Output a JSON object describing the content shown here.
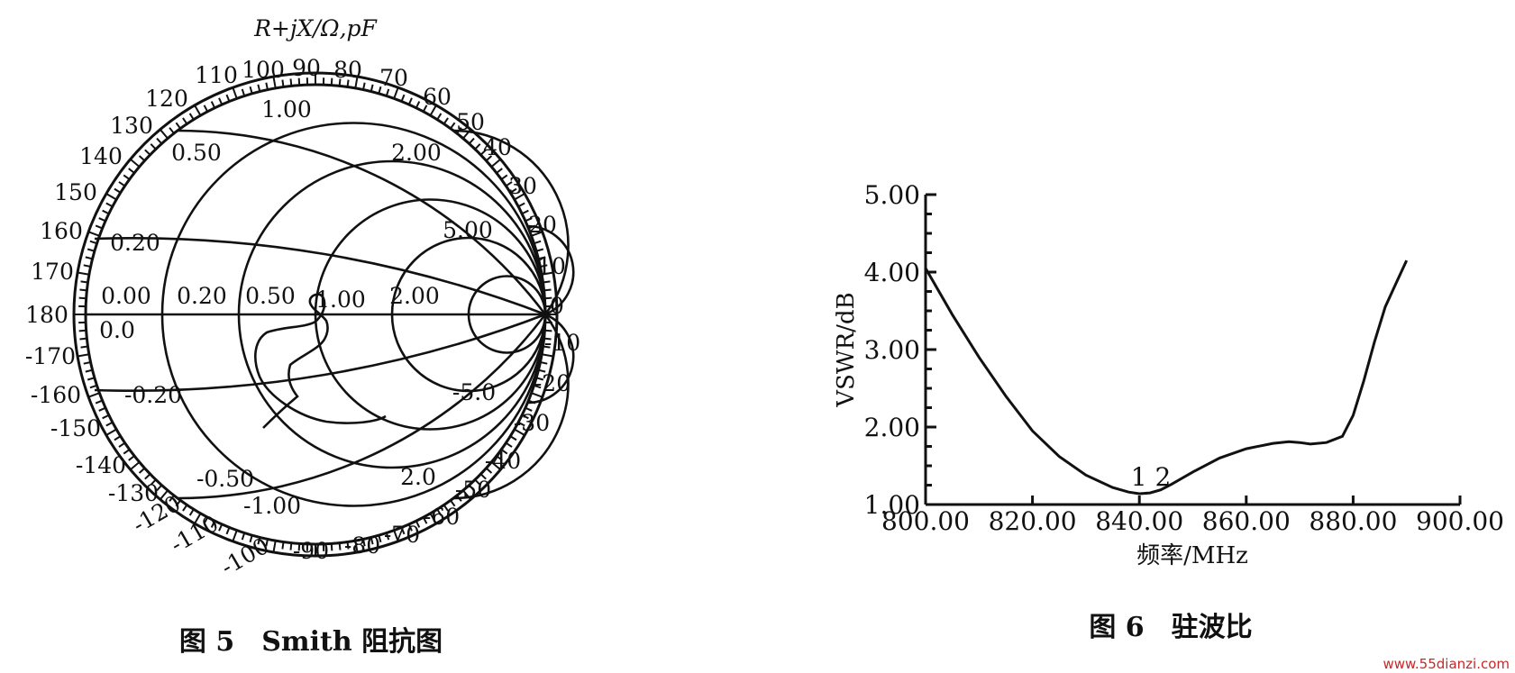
{
  "figure5": {
    "title": "R+jX/Ω,pF",
    "caption": "图 5　Smith 阻抗图",
    "outer_labels": [
      "110",
      "100",
      "90",
      "80",
      "70",
      "60",
      "50",
      "40",
      "30",
      "20",
      "10",
      "0",
      "-10",
      "-20",
      "-30",
      "-40",
      "-50",
      "-60",
      "-70",
      "-80",
      "-90",
      "-100",
      "-110",
      "-120",
      "-130",
      "-140",
      "-150",
      "-160",
      "-170",
      "180",
      "170",
      "160",
      "150",
      "140",
      "130",
      "120"
    ],
    "inner_labels": [
      "1.00",
      "0.50",
      "2.00",
      "5.00",
      "0.20",
      "0.00",
      "0.20",
      "0.50",
      "1.00",
      "2.00",
      "0.0",
      "-0.20",
      "-5.0",
      "-0.50",
      "-1.00",
      "2.0"
    ]
  },
  "figure6": {
    "caption": "图 6　驻波比",
    "marker_label": "1 2"
  },
  "chart_data": {
    "type": "line",
    "xlabel": "频率/MHz",
    "ylabel": "VSWR/dB",
    "xlim": [
      800,
      900
    ],
    "ylim": [
      1,
      5
    ],
    "x_ticks": [
      "800.00",
      "820.00",
      "840.00",
      "860.00",
      "880.00",
      "900.00"
    ],
    "y_ticks": [
      "1.00",
      "2.00",
      "3.00",
      "4.00",
      "5.00"
    ],
    "grid": false,
    "series": [
      {
        "x": [
          800,
          805,
          810,
          815,
          820,
          825,
          830,
          835,
          838,
          840,
          842,
          844,
          846,
          850,
          855,
          860,
          865,
          868,
          870,
          872,
          875,
          878,
          880,
          882,
          884,
          886,
          888,
          890
        ],
        "values": [
          4.05,
          3.45,
          2.9,
          2.4,
          1.95,
          1.62,
          1.38,
          1.22,
          1.16,
          1.14,
          1.15,
          1.19,
          1.26,
          1.42,
          1.6,
          1.72,
          1.79,
          1.81,
          1.8,
          1.78,
          1.8,
          1.88,
          2.15,
          2.6,
          3.1,
          3.55,
          3.85,
          4.15
        ]
      }
    ]
  },
  "watermark": "www.55dianzi.com"
}
